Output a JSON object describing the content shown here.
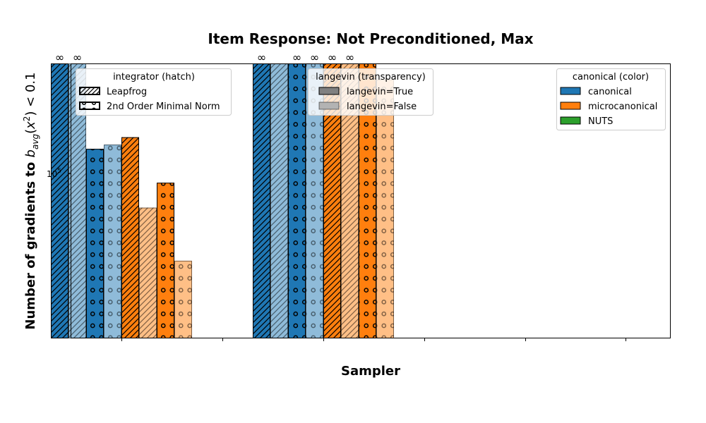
{
  "chart_data": {
    "type": "bar",
    "title": "Item Response: Not Preconditioned, Max",
    "xlabel": "Sampler",
    "ylabel": "Number of gradients to b_avg(x²) < 0.1",
    "yscale": "log",
    "ylim": [
      20000,
      320000
    ],
    "y_ticks": [
      {
        "value": 100000,
        "label": "10^5"
      }
    ],
    "infinity_symbol": "∞",
    "groups": 6,
    "series": [
      {
        "color": "canonical",
        "integrator": "Leapfrog",
        "langevin": "True",
        "values": [
          "inf",
          null,
          "inf",
          null,
          null,
          null
        ]
      },
      {
        "color": "canonical",
        "integrator": "Leapfrog",
        "langevin": "False",
        "values": [
          "inf",
          null,
          320000,
          null,
          null,
          null
        ]
      },
      {
        "color": "canonical",
        "integrator": "2nd Order Minimal Norm",
        "langevin": "True",
        "values": [
          130000,
          null,
          "inf",
          null,
          null,
          null
        ]
      },
      {
        "color": "canonical",
        "integrator": "2nd Order Minimal Norm",
        "langevin": "False",
        "values": [
          136000,
          null,
          "inf",
          null,
          null,
          null
        ]
      },
      {
        "color": "microcanonical",
        "integrator": "Leapfrog",
        "langevin": "True",
        "values": [
          147000,
          null,
          "inf",
          null,
          null,
          null
        ]
      },
      {
        "color": "microcanonical",
        "integrator": "Leapfrog",
        "langevin": "False",
        "values": [
          70000,
          null,
          "inf",
          null,
          null,
          null
        ]
      },
      {
        "color": "microcanonical",
        "integrator": "2nd Order Minimal Norm",
        "langevin": "True",
        "values": [
          91000,
          null,
          320000,
          null,
          null,
          null
        ]
      },
      {
        "color": "microcanonical",
        "integrator": "2nd Order Minimal Norm",
        "langevin": "False",
        "values": [
          40000,
          null,
          270000,
          null,
          null,
          null
        ]
      }
    ],
    "legends": {
      "integrator": {
        "title": "integrator (hatch)",
        "placement": "top-left",
        "items": [
          "Leapfrog",
          "2nd Order Minimal Norm"
        ]
      },
      "langevin": {
        "title": "langevin (transparency)",
        "placement": "top-center",
        "items": [
          "langevin=True",
          "langevin=False"
        ]
      },
      "canonical": {
        "title": "canonical (color)",
        "placement": "top-right",
        "items": [
          "canonical",
          "microcanonical",
          "NUTS"
        ]
      }
    },
    "colors": {
      "canonical": "#1f77b4",
      "microcanonical": "#ff7f0e",
      "NUTS": "#2ca02c"
    }
  }
}
